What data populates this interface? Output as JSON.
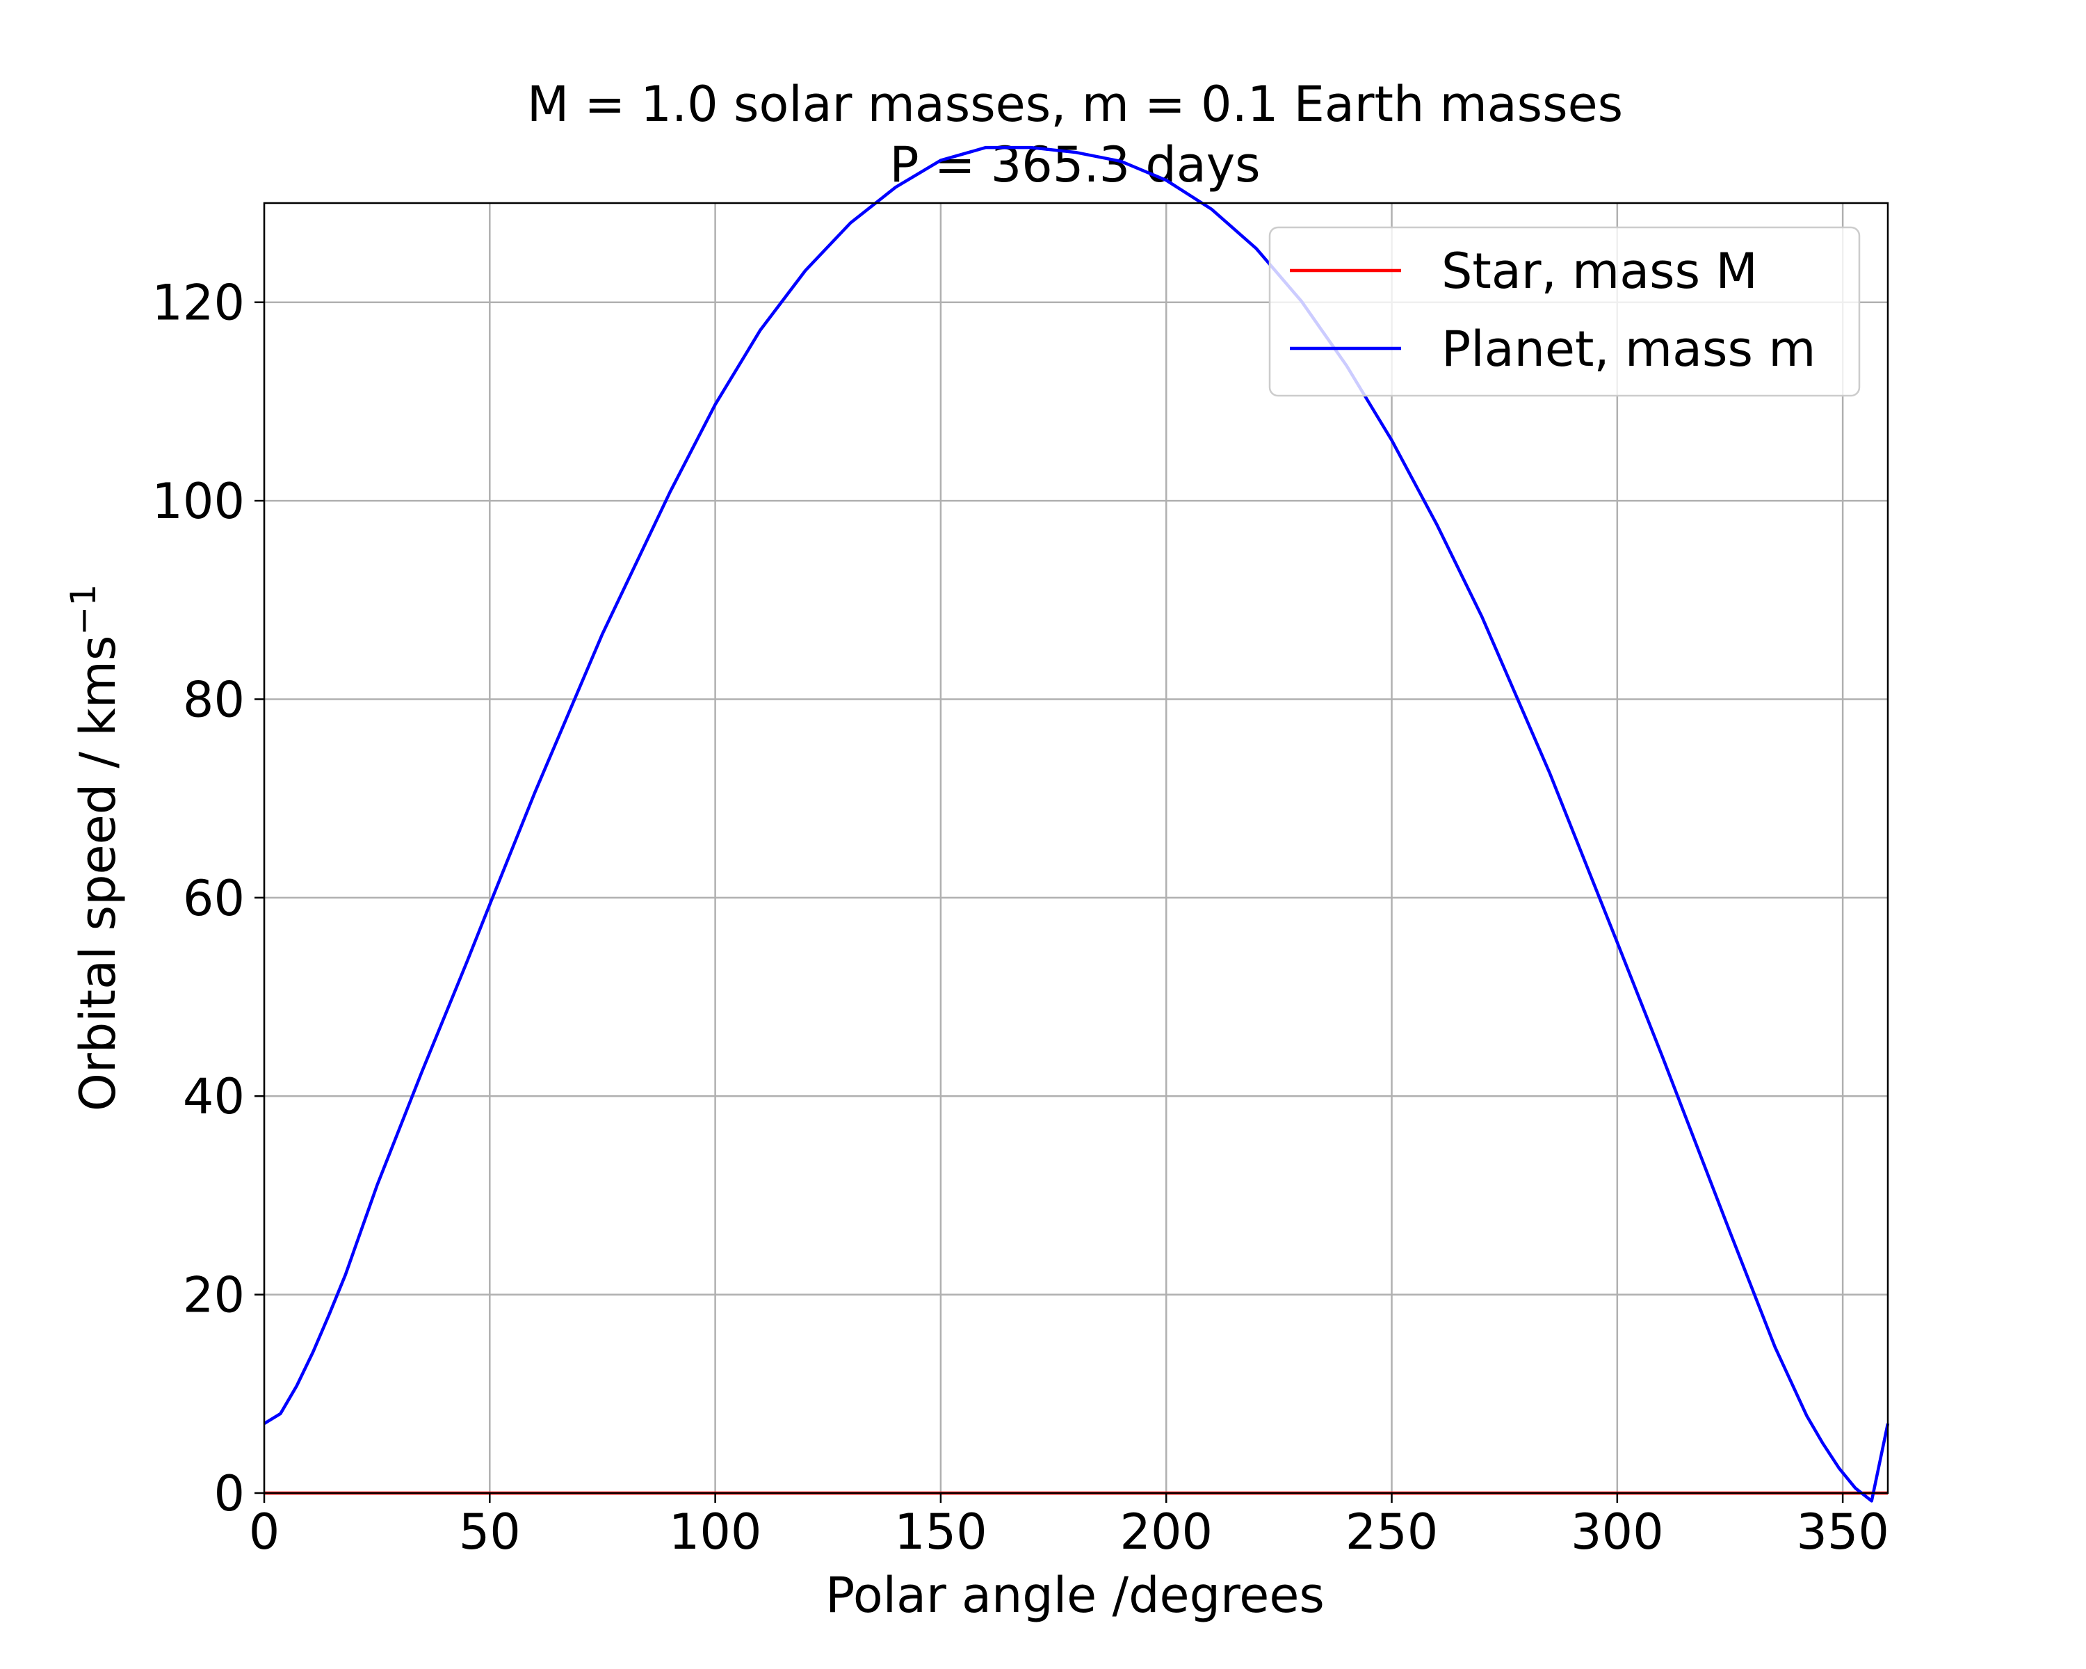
{
  "chart_data": {
    "type": "line",
    "title": "M = 1.0 solar masses, m = 0.1 Earth masses",
    "subtitle": "P = 365.3 days",
    "xlabel": "Polar angle /degrees",
    "ylabel": "Orbital speed / kms",
    "ylabel_superscript": "−1",
    "xlim": [
      0,
      360
    ],
    "ylim": [
      0,
      130
    ],
    "xticks": [
      0,
      50,
      100,
      150,
      200,
      250,
      300,
      350
    ],
    "yticks": [
      0,
      20,
      40,
      60,
      80,
      100,
      120
    ],
    "grid": true,
    "legend_position": "top-right",
    "series": [
      {
        "name": "Star, mass M",
        "color": "#ff0000",
        "x": [
          0,
          45,
          90,
          135,
          180,
          225,
          270,
          315,
          360
        ],
        "y": [
          0,
          0,
          0,
          0,
          0,
          0,
          0,
          0,
          0
        ]
      },
      {
        "name": "Planet, mass m",
        "color": "#0000ff",
        "x": [
          0,
          3.6,
          7.2,
          10.8,
          14.4,
          18,
          25,
          35,
          45,
          50,
          60,
          75,
          90,
          100,
          110,
          120,
          130,
          140,
          150,
          160,
          170,
          180,
          190,
          200,
          210,
          220,
          230,
          240,
          250,
          260,
          270,
          285,
          300,
          310,
          325,
          335,
          342,
          345.6,
          349.2,
          352.8,
          356.4,
          360
        ],
        "y": [
          7,
          8,
          10.8,
          14.2,
          18,
          22,
          31,
          42.5,
          53.6,
          59.3,
          70.6,
          86.6,
          100.9,
          109.7,
          117.2,
          123.2,
          128.0,
          131.6,
          134.3,
          135.6,
          135.6,
          135.1,
          134.2,
          132.3,
          129.4,
          125.4,
          120.1,
          113.6,
          106.1,
          97.6,
          88.3,
          72.6,
          55.5,
          44.0,
          26.3,
          14.7,
          7.8,
          5.0,
          2.5,
          0.5,
          -0.8,
          7
        ]
      }
    ]
  }
}
